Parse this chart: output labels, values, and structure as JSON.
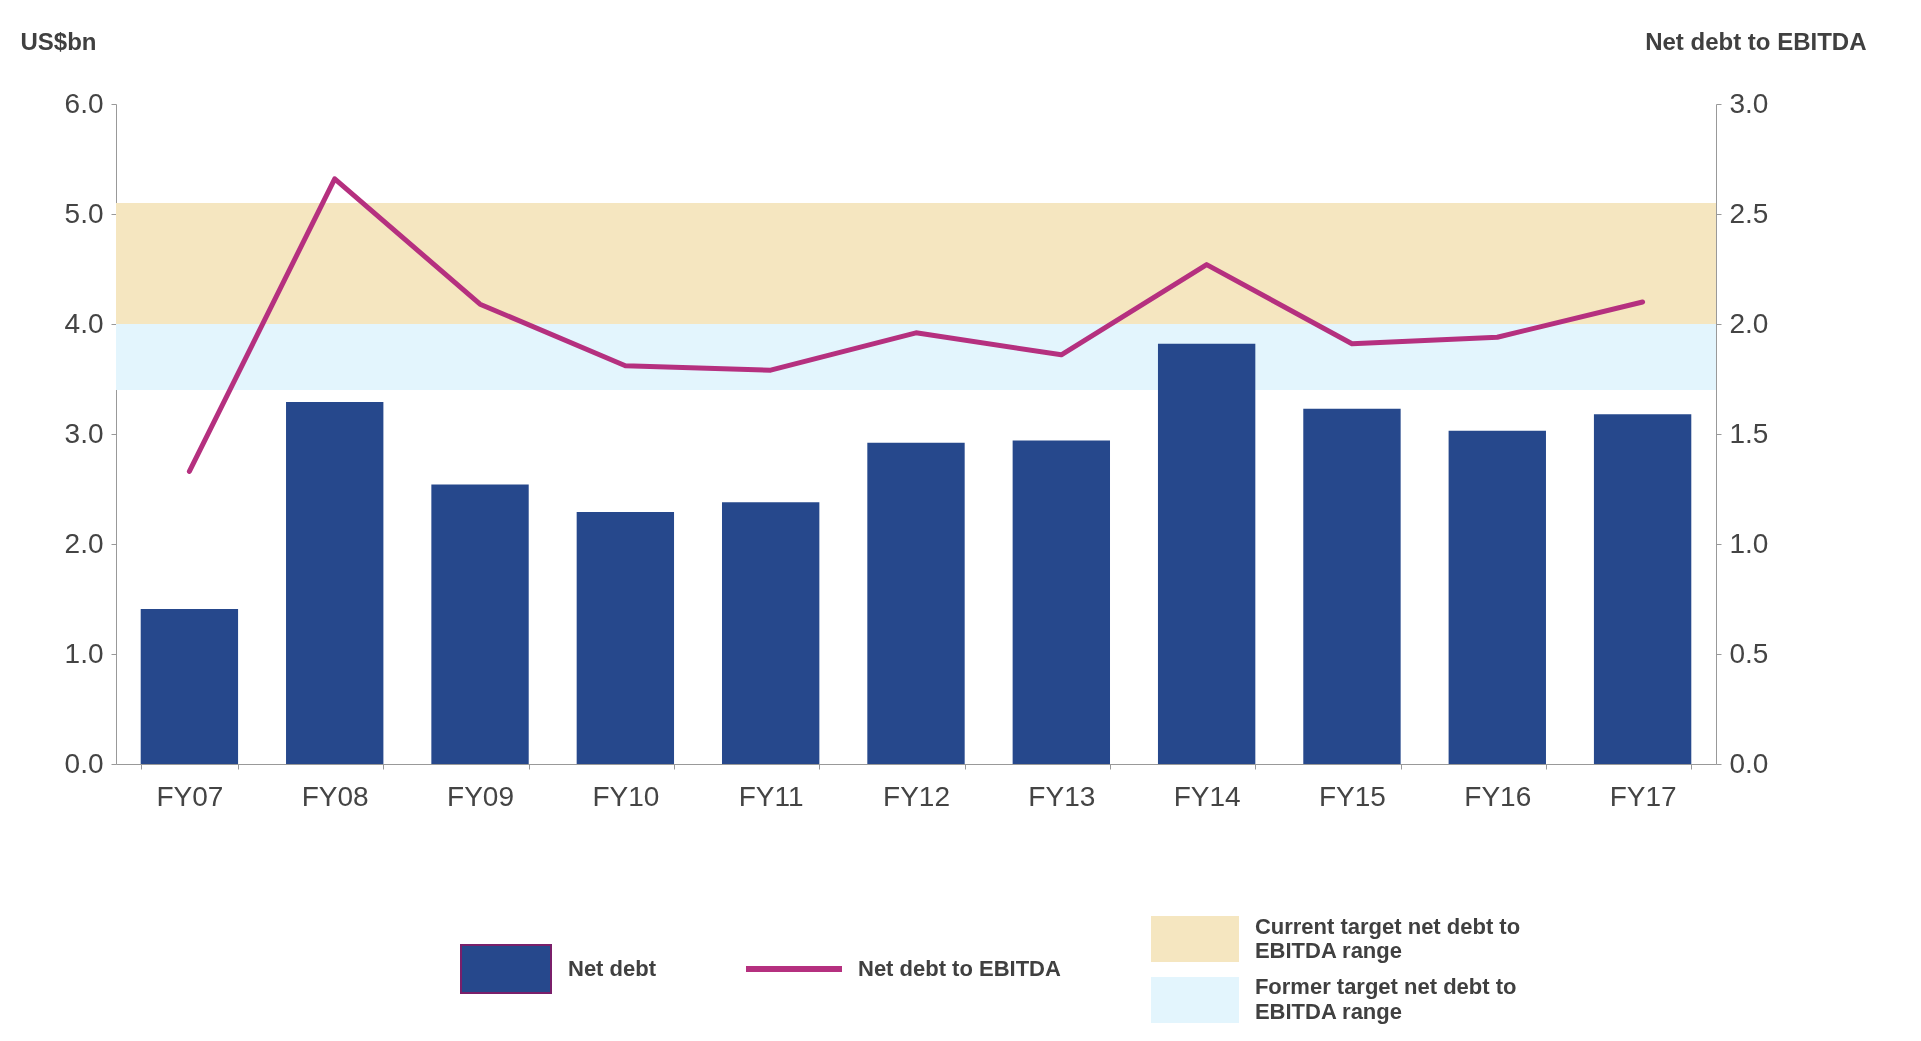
{
  "chart_data": {
    "type": "bar",
    "ylabel": "US$bn",
    "y2label": "Net debt to EBITDA",
    "categories": [
      "FY07",
      "FY08",
      "FY09",
      "FY10",
      "FY11",
      "FY12",
      "FY13",
      "FY14",
      "FY15",
      "FY16",
      "FY17"
    ],
    "series": [
      {
        "name": "Net debt",
        "color": "#26488c",
        "values": [
          1.41,
          3.29,
          2.54,
          2.29,
          2.38,
          2.92,
          2.94,
          3.82,
          3.23,
          3.03,
          3.18
        ]
      },
      {
        "name": "Net debt to EBITDA",
        "type": "line",
        "axis": "y2",
        "color": "#b5307f",
        "values": [
          1.33,
          2.66,
          2.09,
          1.81,
          1.79,
          1.96,
          1.86,
          2.27,
          1.91,
          1.94,
          2.1
        ]
      }
    ],
    "ylim": [
      0,
      6
    ],
    "yticks": [
      {
        "value": 0,
        "label": "0.0"
      },
      {
        "value": 1,
        "label": "1.0"
      },
      {
        "value": 2,
        "label": "2.0"
      },
      {
        "value": 3,
        "label": "3.0"
      },
      {
        "value": 4,
        "label": "4.0"
      },
      {
        "value": 5,
        "label": "5.0"
      },
      {
        "value": 6,
        "label": "6.0"
      }
    ],
    "y2lim": [
      0,
      3
    ],
    "y2ticks": [
      {
        "value": 0,
        "label": "0.0"
      },
      {
        "value": 0.5,
        "label": "0.5"
      },
      {
        "value": 1,
        "label": "1.0"
      },
      {
        "value": 1.5,
        "label": "1.5"
      },
      {
        "value": 2,
        "label": "2.0"
      },
      {
        "value": 2.5,
        "label": "2.5"
      },
      {
        "value": 3,
        "label": "3.0"
      }
    ],
    "bands": [
      {
        "axis": "y2",
        "from": 2.0,
        "to": 2.55,
        "label": "Current target net debt to EBITDA range",
        "color": "#f5e6c0"
      },
      {
        "axis": "y2",
        "from": 1.7,
        "to": 2.0,
        "label": "Former target net debt to EBITDA range",
        "color": "#e3f5fd"
      }
    ],
    "grid": false,
    "legend": "bottom",
    "marker": "none",
    "line_style": "solid"
  }
}
